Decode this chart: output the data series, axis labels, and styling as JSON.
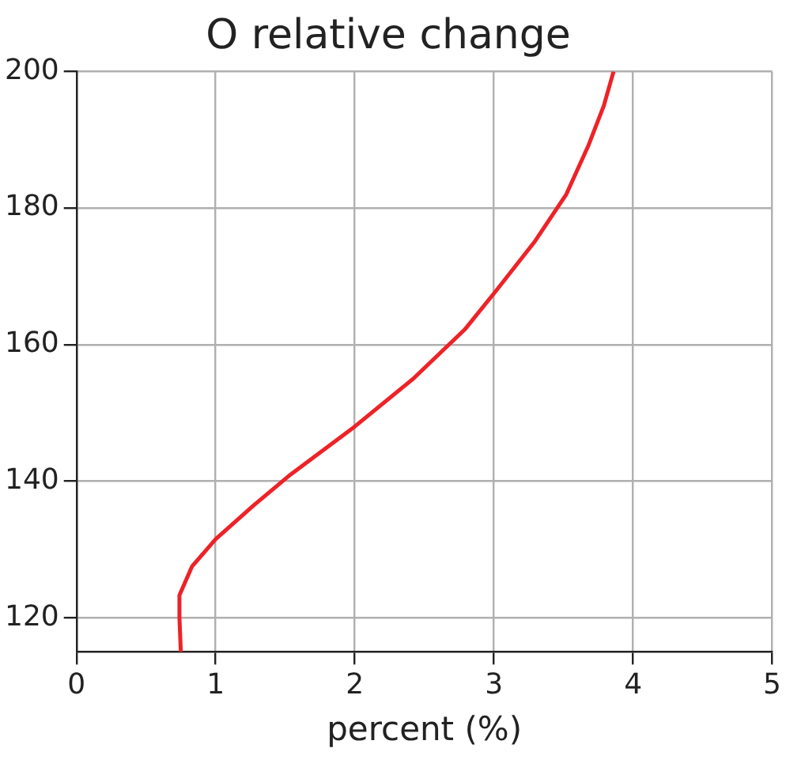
{
  "chart_data": {
    "type": "line",
    "title": "O relative change",
    "xlabel": "percent (%)",
    "x": [
      0.75,
      0.74,
      0.74,
      0.83,
      1.0,
      1.27,
      1.54,
      2.0,
      2.42,
      2.79,
      3.02,
      3.29,
      3.52,
      3.68,
      3.79,
      3.86
    ],
    "series": [
      {
        "color": "#ee2227",
        "values": [
          115,
          120,
          123.3,
          127.5,
          131.5,
          136.4,
          141,
          148,
          155,
          162.2,
          168,
          175,
          182,
          189.2,
          195,
          200
        ]
      }
    ],
    "xlim": [
      0,
      5
    ],
    "xticks": [
      0,
      1,
      2,
      3,
      4,
      5
    ],
    "ylim": [
      115,
      200
    ],
    "yticks": [
      120,
      140,
      160,
      180,
      200
    ],
    "grid": true,
    "legend": false,
    "marker": "none",
    "line_style": "solid"
  }
}
